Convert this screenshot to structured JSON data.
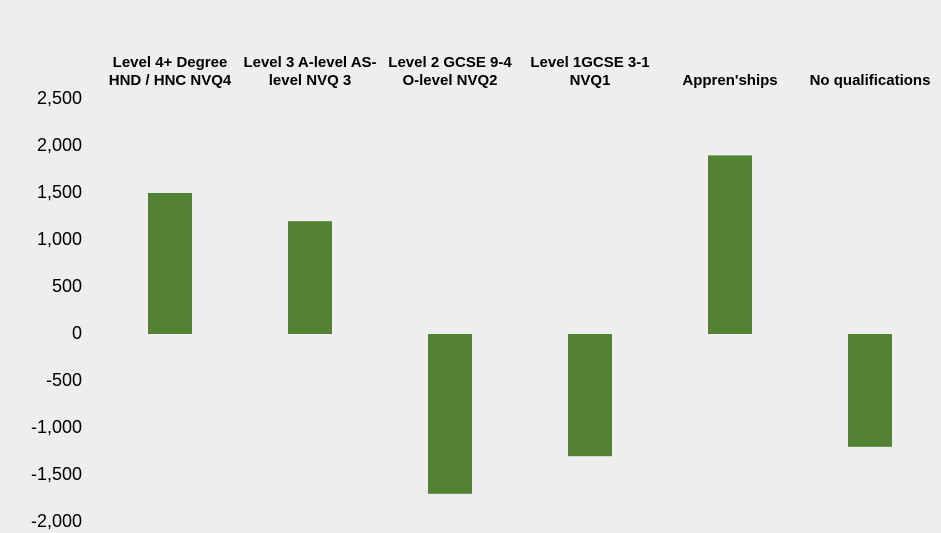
{
  "chart_data": {
    "type": "bar",
    "categories": [
      "Level 4+ Degree HND / HNC NVQ4",
      "Level 3 A-level AS-level NVQ 3",
      "Level 2 GCSE 9-4 O-level NVQ2",
      "Level 1GCSE 3-1 NVQ1",
      "Appren'ships",
      "No qualifications"
    ],
    "values": [
      1500,
      1200,
      -1700,
      -1300,
      1900,
      -1200
    ],
    "color": "#548235",
    "ylim": [
      -2000,
      2500
    ],
    "yticks": [
      {
        "value": -2000,
        "label": "-2,000"
      },
      {
        "value": -1500,
        "label": "-1,500"
      },
      {
        "value": -1000,
        "label": "-1,000"
      },
      -500,
      0,
      500,
      {
        "value": 1000,
        "label": "1,000"
      },
      {
        "value": 1500,
        "label": "1,500"
      },
      {
        "value": 2000,
        "label": "2,000"
      },
      {
        "value": 2500,
        "label": "2,500"
      }
    ],
    "grid": false
  }
}
